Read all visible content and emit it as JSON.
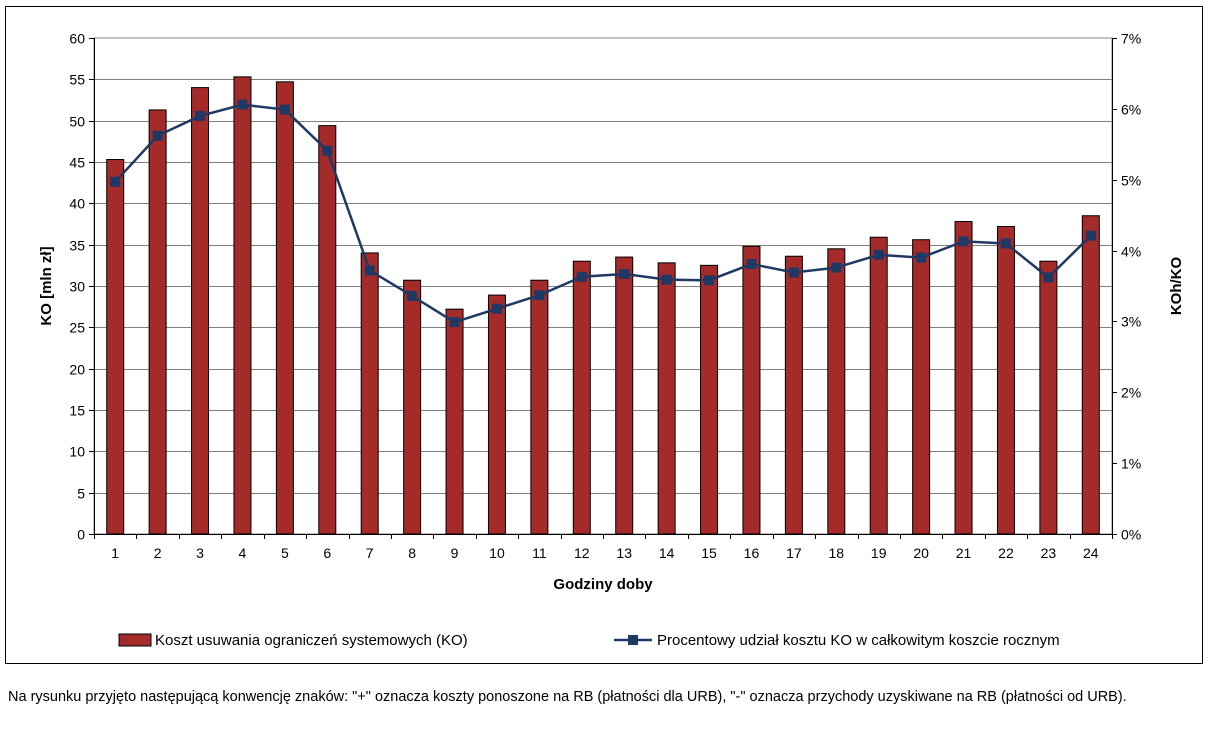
{
  "chart_data": {
    "type": "bar+line",
    "categories": [
      "1",
      "2",
      "3",
      "4",
      "5",
      "6",
      "7",
      "8",
      "9",
      "10",
      "11",
      "12",
      "13",
      "14",
      "15",
      "16",
      "17",
      "18",
      "19",
      "20",
      "21",
      "22",
      "23",
      "24"
    ],
    "series": [
      {
        "name": "Koszt usuwania ograniczeń systemowych (KO)",
        "type": "bar",
        "axis": "left",
        "color": "#A52A2A",
        "values": [
          45.3,
          51.3,
          54.0,
          55.3,
          54.7,
          49.4,
          34.0,
          30.7,
          27.2,
          28.9,
          30.7,
          33.0,
          33.5,
          32.8,
          32.5,
          34.8,
          33.6,
          34.5,
          35.9,
          35.6,
          37.8,
          37.2,
          33.0,
          38.5
        ]
      },
      {
        "name": "Procentowy udział kosztu KO w całkowitym koszcie rocznym",
        "type": "line",
        "axis": "right",
        "color": "#1F3864",
        "values": [
          0.0497,
          0.0562,
          0.059,
          0.0606,
          0.0599,
          0.0541,
          0.0372,
          0.0336,
          0.0299,
          0.0318,
          0.0337,
          0.0363,
          0.0367,
          0.0359,
          0.0358,
          0.0381,
          0.0369,
          0.0376,
          0.0394,
          0.039,
          0.0413,
          0.041,
          0.0362,
          0.0421
        ]
      }
    ],
    "xlabel": "Godziny doby",
    "ylabel": "KO [mln zł]",
    "y2label": "KOh/KO",
    "ylim": [
      0,
      60
    ],
    "y2lim": [
      0,
      0.07
    ],
    "yticks": [
      "0",
      "5",
      "10",
      "15",
      "20",
      "25",
      "30",
      "35",
      "40",
      "45",
      "50",
      "55",
      "60"
    ],
    "y2ticks": [
      "0%",
      "1%",
      "2%",
      "3%",
      "4%",
      "5%",
      "6%",
      "7%"
    ],
    "grid": true,
    "legend_position": "bottom"
  },
  "footnote": "Na rysunku przyjęto następującą konwencję znaków: \"+\" oznacza koszty ponoszone na RB (płatności dla URB), \"-\" oznacza przychody uzyskiwane na RB (płatności od URB)."
}
